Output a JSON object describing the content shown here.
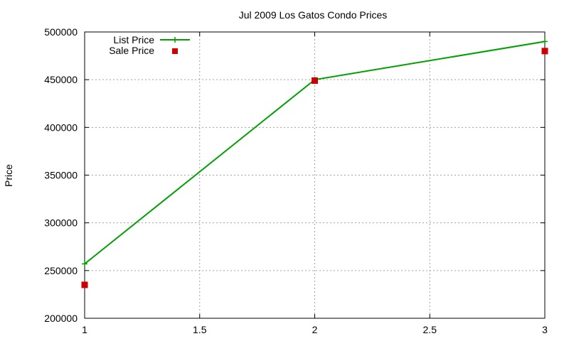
{
  "chart_data": {
    "type": "line",
    "title": "Jul 2009 Los Gatos Condo Prices",
    "xlabel": "",
    "ylabel": "Price",
    "xlim": [
      1,
      3
    ],
    "ylim": [
      200000,
      500000
    ],
    "x_ticks": [
      "1",
      "1.5",
      "2",
      "2.5",
      "3"
    ],
    "y_ticks": [
      "200000",
      "250000",
      "300000",
      "350000",
      "400000",
      "450000",
      "500000"
    ],
    "grid": true,
    "legend_position": "top-left",
    "x": [
      1,
      2,
      3
    ],
    "series": [
      {
        "name": "List Price",
        "style": "linespoints",
        "marker": "plus",
        "color": "#00a000",
        "values": [
          257000,
          450000,
          490000
        ]
      },
      {
        "name": "Sale Price",
        "style": "points",
        "marker": "square",
        "color": "#cc0000",
        "values": [
          235000,
          449000,
          480000
        ]
      }
    ]
  }
}
